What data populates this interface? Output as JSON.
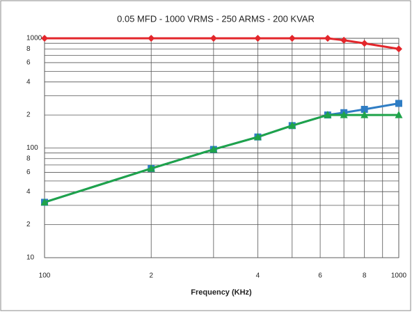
{
  "chart_data": {
    "type": "line",
    "title": "0.05 MFD - 1000 VRMS - 250 ARMS - 200 KVAR",
    "x_label": "Frequency (KHz)",
    "log_x": true,
    "log_y": true,
    "grid": true,
    "xlim": [
      100,
      1000
    ],
    "xticks": [
      100,
      {
        "value": 200,
        "label": "2"
      },
      {
        "value": 400,
        "label": "4"
      },
      {
        "value": 600,
        "label": "6"
      },
      {
        "value": 800,
        "label": "8"
      },
      1000
    ],
    "x_minor_ticks": [
      300,
      500,
      700,
      900
    ],
    "ylim": [
      10,
      1000
    ],
    "yticks": [
      10,
      {
        "value": 20,
        "label": "2"
      },
      {
        "value": 40,
        "label": "4"
      },
      {
        "value": 60,
        "label": "6"
      },
      {
        "value": 80,
        "label": "8"
      },
      100,
      {
        "value": 200,
        "label": "2"
      },
      {
        "value": 400,
        "label": "4"
      },
      {
        "value": 600,
        "label": "6"
      },
      {
        "value": 800,
        "label": "8"
      },
      1000
    ],
    "y_minor_ticks": [
      30,
      50,
      70,
      90,
      300,
      500,
      700,
      900
    ],
    "x": [
      100,
      200,
      300,
      400,
      500,
      630,
      700,
      800,
      1000
    ],
    "series": [
      {
        "color": "#e3262b",
        "marker": "diamond",
        "values": [
          1000,
          1000,
          1000,
          1000,
          1000,
          1000,
          960,
          900,
          800
        ]
      },
      {
        "color": "#2f7dc4",
        "marker": "square",
        "values": [
          32,
          65,
          97,
          126,
          160,
          200,
          210,
          225,
          255
        ]
      },
      {
        "color": "#1fa34a",
        "marker": "triangle",
        "values": [
          32,
          65,
          97,
          126,
          160,
          200,
          200,
          200,
          200
        ]
      }
    ]
  }
}
